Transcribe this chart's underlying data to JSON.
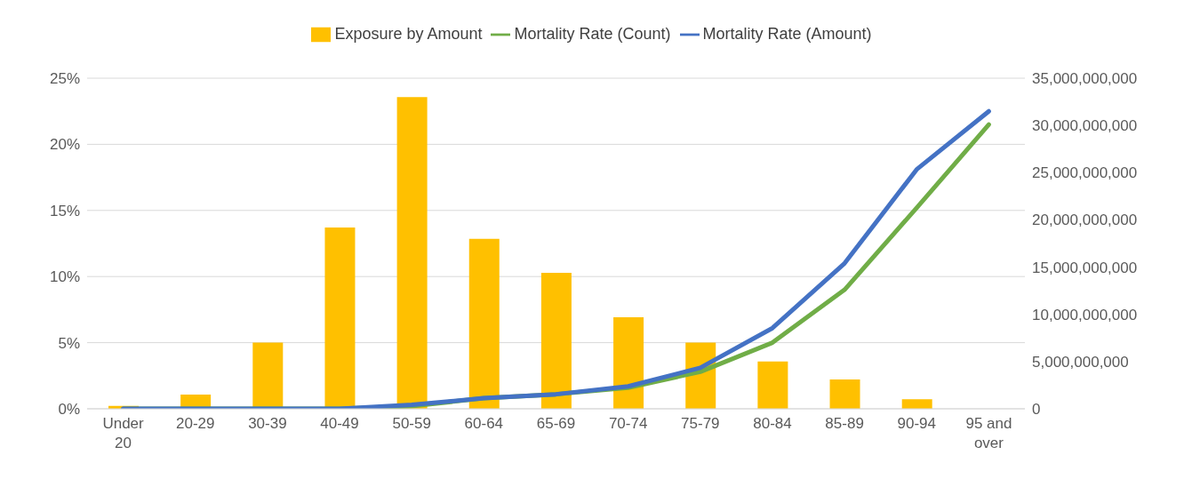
{
  "chart_data": {
    "type": "bar",
    "categories": [
      "Under 20",
      "20-29",
      "30-39",
      "40-49",
      "50-59",
      "60-64",
      "65-69",
      "70-74",
      "75-79",
      "80-84",
      "85-89",
      "90-94",
      "95 and over"
    ],
    "series": [
      {
        "name": "Exposure by Amount",
        "axis": "y2",
        "color": "#ffc000",
        "values": [
          300000000,
          1500000000,
          7000000000,
          19200000000,
          33000000000,
          18000000000,
          14400000000,
          9700000000,
          7000000000,
          5000000000,
          3100000000,
          1000000000,
          0
        ]
      },
      {
        "name": "Mortality Rate (Count)",
        "type": "line",
        "color": "#70ad47",
        "values": [
          0,
          0,
          0,
          0,
          0.2,
          0.8,
          1.1,
          1.6,
          2.8,
          5.0,
          9.0,
          15.2,
          21.5
        ]
      },
      {
        "name": "Mortality Rate (Amount)",
        "type": "line",
        "color": "#4472c4",
        "values": [
          0,
          0,
          0,
          0,
          0.3,
          0.8,
          1.1,
          1.7,
          3.1,
          6.1,
          11.0,
          18.1,
          22.5
        ]
      }
    ],
    "ylim": [
      0,
      25
    ],
    "yticks": [
      {
        "value": 0,
        "label": "0%"
      },
      {
        "value": 5,
        "label": "5%"
      },
      {
        "value": 10,
        "label": "10%"
      },
      {
        "value": 15,
        "label": "15%"
      },
      {
        "value": 20,
        "label": "20%"
      },
      {
        "value": 25,
        "label": "25%"
      }
    ],
    "y2lim": [
      0,
      35000000000
    ],
    "y2ticks": [
      0,
      {
        "value": 5000000000,
        "label": "5,000,000,000"
      },
      {
        "value": 10000000000,
        "label": "10,000,000,000"
      },
      {
        "value": 15000000000,
        "label": "15,000,000,000"
      },
      {
        "value": 20000000000,
        "label": "20,000,000,000"
      },
      {
        "value": 25000000000,
        "label": "25,000,000,000"
      },
      {
        "value": 30000000000,
        "label": "30,000,000,000"
      },
      {
        "value": 35000000000,
        "label": "35,000,000,000"
      }
    ],
    "grid": "y",
    "legend": "top",
    "marker": "none",
    "line_style": "solid"
  }
}
